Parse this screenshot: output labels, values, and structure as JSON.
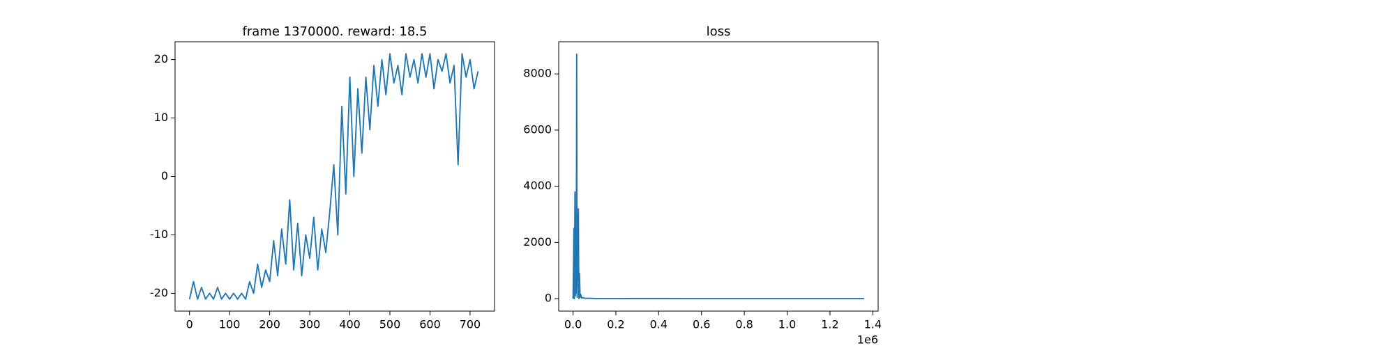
{
  "chart_data": [
    {
      "type": "line",
      "title": "frame 1370000. reward: 18.5",
      "color": "#1f77b4",
      "x": [
        0,
        10,
        20,
        30,
        40,
        50,
        60,
        70,
        80,
        90,
        100,
        110,
        120,
        130,
        140,
        150,
        160,
        170,
        180,
        190,
        200,
        210,
        220,
        230,
        240,
        250,
        260,
        270,
        280,
        290,
        300,
        310,
        320,
        330,
        340,
        350,
        360,
        370,
        380,
        390,
        400,
        410,
        420,
        430,
        440,
        450,
        460,
        470,
        480,
        490,
        500,
        510,
        520,
        530,
        540,
        550,
        560,
        570,
        580,
        590,
        600,
        610,
        620,
        630,
        640,
        650,
        660,
        670,
        680,
        690,
        700,
        710,
        720
      ],
      "values": [
        -21,
        -18,
        -21,
        -19,
        -21,
        -20,
        -21,
        -19,
        -21,
        -20,
        -21,
        -20,
        -21,
        -20,
        -21,
        -18,
        -20,
        -15,
        -19,
        -16,
        -18,
        -11,
        -17,
        -9,
        -15,
        -4,
        -16,
        -8,
        -17,
        -10,
        -14,
        -7,
        -16,
        -9,
        -13,
        -6,
        2,
        -10,
        12,
        -3,
        17,
        0,
        15,
        4,
        17,
        8,
        19,
        12,
        20,
        14,
        21,
        16,
        19,
        14,
        21,
        17,
        20,
        16,
        21,
        17,
        21,
        15,
        20,
        18,
        21,
        16,
        19,
        2,
        21,
        17,
        20,
        15,
        18
      ],
      "xlim": [
        -36,
        761
      ],
      "xticks": [
        0,
        100,
        200,
        300,
        400,
        500,
        600,
        700
      ],
      "ylim": [
        -23.05,
        23.05
      ],
      "yticks": [
        -20,
        -10,
        0,
        10,
        20
      ]
    },
    {
      "type": "line",
      "title": "loss",
      "color": "#1f77b4",
      "x_offset_label": "1e6",
      "x": [
        0,
        4000,
        6000,
        9000,
        11000,
        13000,
        15000,
        17000,
        19000,
        22000,
        25000,
        27000,
        30000,
        33000,
        36000,
        40000,
        45000,
        55000,
        70000,
        100000,
        200000,
        300000,
        400000,
        500000,
        600000,
        700000,
        800000,
        900000,
        1000000,
        1100000,
        1200000,
        1300000,
        1360000
      ],
      "values": [
        0,
        2500,
        0,
        3800,
        100,
        3000,
        200,
        8700,
        50,
        1500,
        3200,
        0,
        900,
        50,
        150,
        20,
        40,
        10,
        15,
        5,
        3,
        2,
        2,
        1,
        1,
        1,
        1,
        1,
        1,
        1,
        1,
        1,
        1
      ],
      "xlim": [
        -67000,
        1425000
      ],
      "xticks": [
        {
          "value": 0,
          "label": "0.0"
        },
        {
          "value": 200000,
          "label": "0.2"
        },
        {
          "value": 400000,
          "label": "0.4"
        },
        {
          "value": 600000,
          "label": "0.6"
        },
        {
          "value": 800000,
          "label": "0.8"
        },
        {
          "value": 1000000,
          "label": "1.0"
        },
        {
          "value": 1200000,
          "label": "1.2"
        },
        {
          "value": 1400000,
          "label": "1.4"
        }
      ],
      "ylim": [
        -444,
        9143
      ],
      "yticks": [
        0,
        2000,
        4000,
        6000,
        8000
      ]
    }
  ]
}
